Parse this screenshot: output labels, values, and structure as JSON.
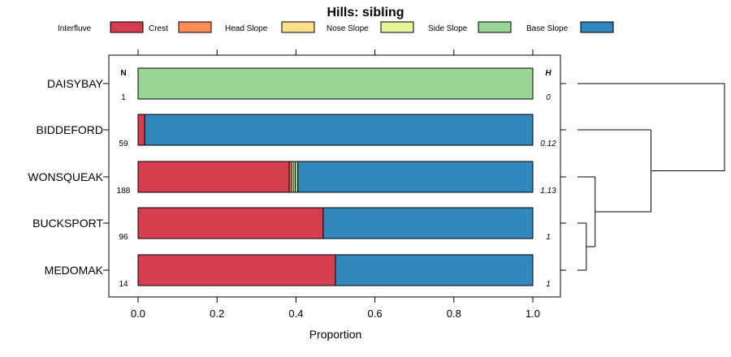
{
  "chart_data": {
    "type": "bar",
    "orientation": "horizontal",
    "stacked": true,
    "title": "Hills: sibling",
    "xlabel": "Proportion",
    "ylabel": "",
    "xlim": [
      0,
      1
    ],
    "xticks": [
      "0.0",
      "0.2",
      "0.4",
      "0.6",
      "0.8",
      "1.0"
    ],
    "legend_position": "top",
    "n_header": "N",
    "h_header": "H",
    "categories": [
      "DAISYBAY",
      "BIDDEFORD",
      "WONSQUEAK",
      "BUCKSPORT",
      "MEDOMAK"
    ],
    "n_values": [
      "1",
      "59",
      "188",
      "96",
      "14"
    ],
    "h_values": [
      "0",
      "0.12",
      "1.13",
      "1",
      "1"
    ],
    "series": [
      {
        "name": "Interfluve",
        "color": "#D53E4F",
        "values": [
          0,
          0.017,
          0.383,
          0.469,
          0.5
        ]
      },
      {
        "name": "Crest",
        "color": "#FC8D59",
        "values": [
          0,
          0,
          0.005,
          0,
          0
        ]
      },
      {
        "name": "Head Slope",
        "color": "#FEE08B",
        "values": [
          0,
          0,
          0.005,
          0,
          0
        ]
      },
      {
        "name": "Nose Slope",
        "color": "#E6F598",
        "values": [
          0,
          0,
          0.005,
          0,
          0
        ]
      },
      {
        "name": "Side Slope",
        "color": "#99D594",
        "values": [
          1,
          0,
          0.007,
          0,
          0
        ]
      },
      {
        "name": "Base Slope",
        "color": "#3288BD",
        "values": [
          0,
          0.983,
          0.595,
          0.531,
          0.5
        ]
      }
    ],
    "dendrogram": {
      "leaves": [
        "DAISYBAY",
        "BIDDEFORD",
        "WONSQUEAK",
        "BUCKSPORT",
        "MEDOMAK"
      ],
      "merges": [
        {
          "a": "BUCKSPORT",
          "b": "MEDOMAK",
          "height": 0.06
        },
        {
          "a": "WONSQUEAK",
          "b": 0,
          "height": 0.12
        },
        {
          "a": "BIDDEFORD",
          "b": 1,
          "height": 0.5
        },
        {
          "a": "DAISYBAY",
          "b": 2,
          "height": 1.0
        }
      ]
    }
  }
}
